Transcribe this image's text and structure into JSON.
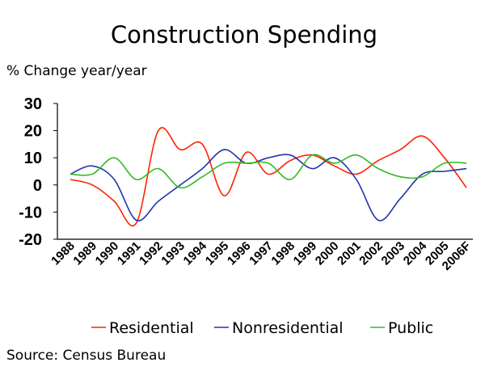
{
  "chart_data": {
    "type": "line",
    "title": "Construction Spending",
    "ylabel": "% Change year/year",
    "source": "Source: Census Bureau",
    "ylim": [
      -20,
      30
    ],
    "yticks": [
      30,
      20,
      10,
      0,
      -10,
      -20
    ],
    "categories": [
      "1988",
      "1989",
      "1990",
      "1991",
      "1992",
      "1993",
      "1994",
      "1995",
      "1996",
      "1997",
      "1998",
      "1999",
      "2000",
      "2001",
      "2002",
      "2003",
      "2004",
      "2005",
      "2006F"
    ],
    "series": [
      {
        "name": "Residential",
        "color": "#ff2200",
        "values": [
          2,
          0,
          -6,
          -14,
          20,
          13,
          15,
          -4,
          12,
          4,
          9,
          11,
          7,
          4,
          9,
          13,
          18,
          10,
          -1
        ]
      },
      {
        "name": "Nonresidential",
        "color": "#2233aa",
        "values": [
          4,
          7,
          2,
          -13,
          -6,
          0,
          6,
          13,
          8,
          10,
          11,
          6,
          10,
          2,
          -13,
          -5,
          4,
          5,
          6
        ]
      },
      {
        "name": "Public",
        "color": "#33bb22",
        "values": [
          4,
          4,
          10,
          2,
          6,
          -1,
          3,
          8,
          8,
          8,
          2,
          11,
          8,
          11,
          6,
          3,
          3,
          8,
          8
        ]
      }
    ],
    "legend_position": "bottom"
  }
}
